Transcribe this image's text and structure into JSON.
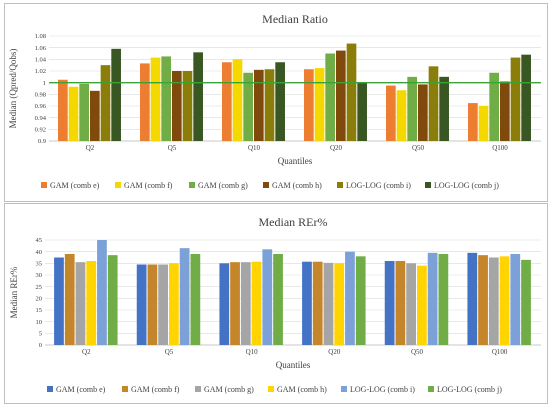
{
  "chart_data": [
    {
      "type": "bar",
      "title": "Median Ratio",
      "xlabel": "Quantiles",
      "ylabel": "Median (Qpred/Qobs)",
      "ylim": [
        0.9,
        1.08
      ],
      "yticks": [
        "0.9",
        "0.92",
        "0.94",
        "0.96",
        "0.98",
        "1",
        "1.02",
        "1.04",
        "1.06",
        "1.08"
      ],
      "reference_line": 1.0,
      "grid": true,
      "legend_position": "bottom",
      "categories": [
        "Q2",
        "Q5",
        "Q10",
        "Q20",
        "Q50",
        "Q100"
      ],
      "series": [
        {
          "name": "GAM (comb e)",
          "color": "#ed7d31",
          "values": [
            1.005,
            1.033,
            1.035,
            1.023,
            0.995,
            0.965
          ]
        },
        {
          "name": "GAM (comb f)",
          "color": "#f5d800",
          "values": [
            0.993,
            1.043,
            1.04,
            1.025,
            0.987,
            0.96
          ]
        },
        {
          "name": "GAM (comb g)",
          "color": "#70ad47",
          "values": [
            0.998,
            1.045,
            1.017,
            1.05,
            1.01,
            1.017
          ]
        },
        {
          "name": "GAM (comb h)",
          "color": "#7f4a0c",
          "values": [
            0.986,
            1.02,
            1.022,
            1.055,
            0.997,
            1.002
          ]
        },
        {
          "name": "LOG-LOG (comb i)",
          "color": "#8a7d0a",
          "values": [
            1.03,
            1.02,
            1.023,
            1.067,
            1.028,
            1.043
          ]
        },
        {
          "name": "LOG-LOG (comb j)",
          "color": "#385723",
          "values": [
            1.058,
            1.052,
            1.035,
            1.0,
            1.01,
            1.048
          ]
        }
      ]
    },
    {
      "type": "bar",
      "title": "Median REr%",
      "xlabel": "Quantiles",
      "ylabel": "Median REr%",
      "ylim": [
        0,
        45
      ],
      "yticks": [
        "0",
        "5",
        "10",
        "15",
        "20",
        "25",
        "30",
        "35",
        "40",
        "45"
      ],
      "grid": true,
      "legend_position": "bottom",
      "categories": [
        "Q2",
        "Q5",
        "Q10",
        "Q20",
        "Q50",
        "Q100"
      ],
      "series": [
        {
          "name": "GAM (comb e)",
          "color": "#4472c4",
          "values": [
            37.5,
            34.5,
            35.0,
            35.7,
            36.0,
            39.5
          ]
        },
        {
          "name": "GAM (comb f)",
          "color": "#c5852a",
          "values": [
            39.0,
            34.5,
            35.5,
            35.7,
            36.0,
            38.5
          ]
        },
        {
          "name": "GAM (comb g)",
          "color": "#a5a5a5",
          "values": [
            35.5,
            34.5,
            35.5,
            35.2,
            35.0,
            37.5
          ]
        },
        {
          "name": "GAM (comb h)",
          "color": "#ffd400",
          "values": [
            36.0,
            35.0,
            35.7,
            35.0,
            34.0,
            38.0
          ]
        },
        {
          "name": "LOG-LOG (comb i)",
          "color": "#7ca1d8",
          "values": [
            45.0,
            41.5,
            41.0,
            40.0,
            39.5,
            39.0
          ]
        },
        {
          "name": "LOG-LOG (comb j)",
          "color": "#70ad47",
          "values": [
            38.5,
            39.0,
            39.0,
            38.0,
            39.0,
            36.5
          ]
        }
      ]
    }
  ]
}
